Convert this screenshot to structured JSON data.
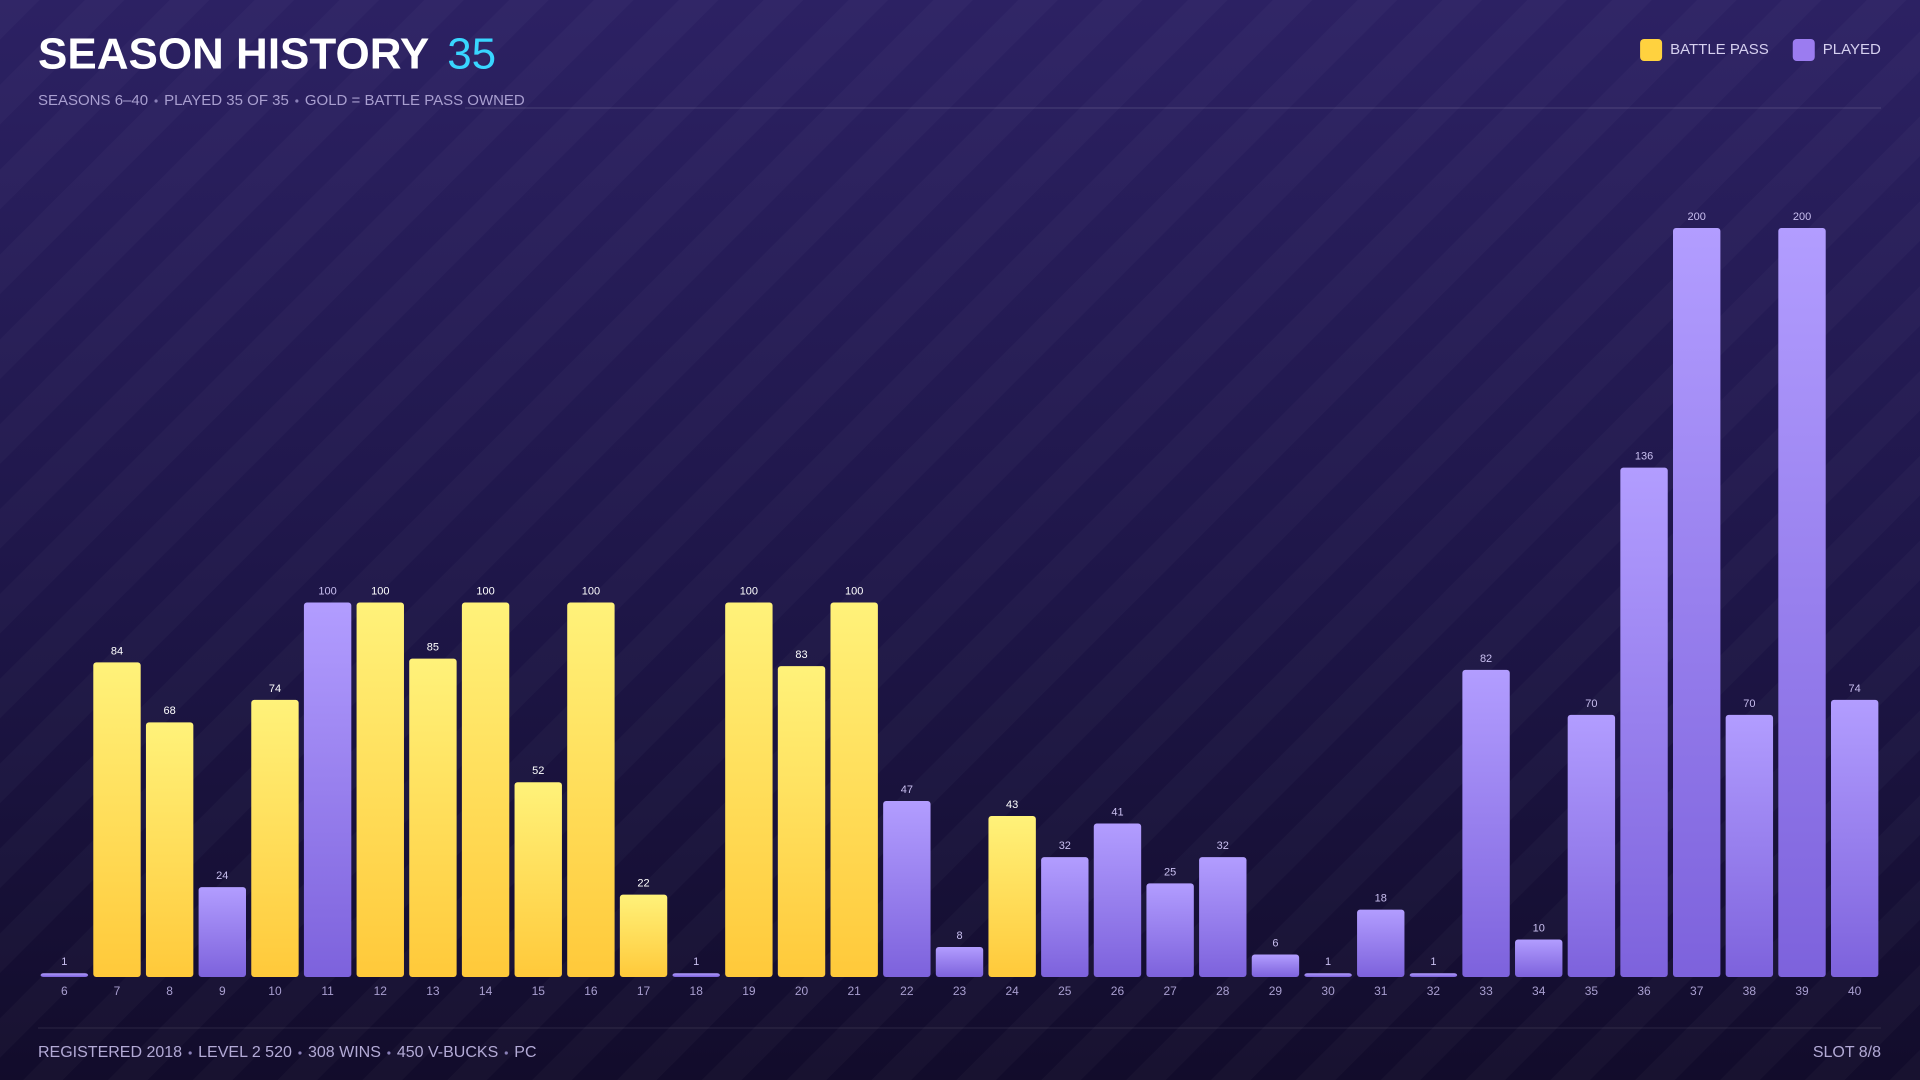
{
  "chart_data": {
    "type": "bar",
    "title": "SEASON HISTORY",
    "title_count": "35",
    "subtitle": [
      "SEASONS 6–40",
      "PLAYED 35 OF 35",
      "GOLD = BATTLE PASS OWNED"
    ],
    "legend": [
      {
        "name": "BATTLE PASS",
        "color": "#ffd23f"
      },
      {
        "name": "PLAYED",
        "color": "#9b7cf0"
      }
    ],
    "categories": [
      "6",
      "7",
      "8",
      "9",
      "10",
      "11",
      "12",
      "13",
      "14",
      "15",
      "16",
      "17",
      "18",
      "19",
      "20",
      "21",
      "22",
      "23",
      "24",
      "25",
      "26",
      "27",
      "28",
      "29",
      "30",
      "31",
      "32",
      "33",
      "34",
      "35",
      "36",
      "37",
      "38",
      "39",
      "40"
    ],
    "values": [
      1,
      84,
      68,
      24,
      74,
      100,
      100,
      85,
      100,
      52,
      100,
      22,
      1,
      100,
      83,
      100,
      47,
      8,
      43,
      32,
      41,
      25,
      32,
      6,
      1,
      18,
      1,
      82,
      10,
      70,
      136,
      200,
      70,
      200,
      74
    ],
    "battle_pass": [
      false,
      true,
      true,
      false,
      true,
      false,
      true,
      true,
      true,
      true,
      true,
      true,
      false,
      true,
      true,
      true,
      false,
      false,
      true,
      false,
      false,
      false,
      false,
      false,
      false,
      false,
      false,
      false,
      false,
      false,
      false,
      false,
      false,
      false,
      false
    ],
    "ylim": [
      0,
      200
    ],
    "footer": [
      "REGISTERED 2018",
      "LEVEL 2 520",
      "308 WINS",
      "450 V-BUCKS",
      "PC"
    ],
    "slot": "SLOT 8/8"
  }
}
